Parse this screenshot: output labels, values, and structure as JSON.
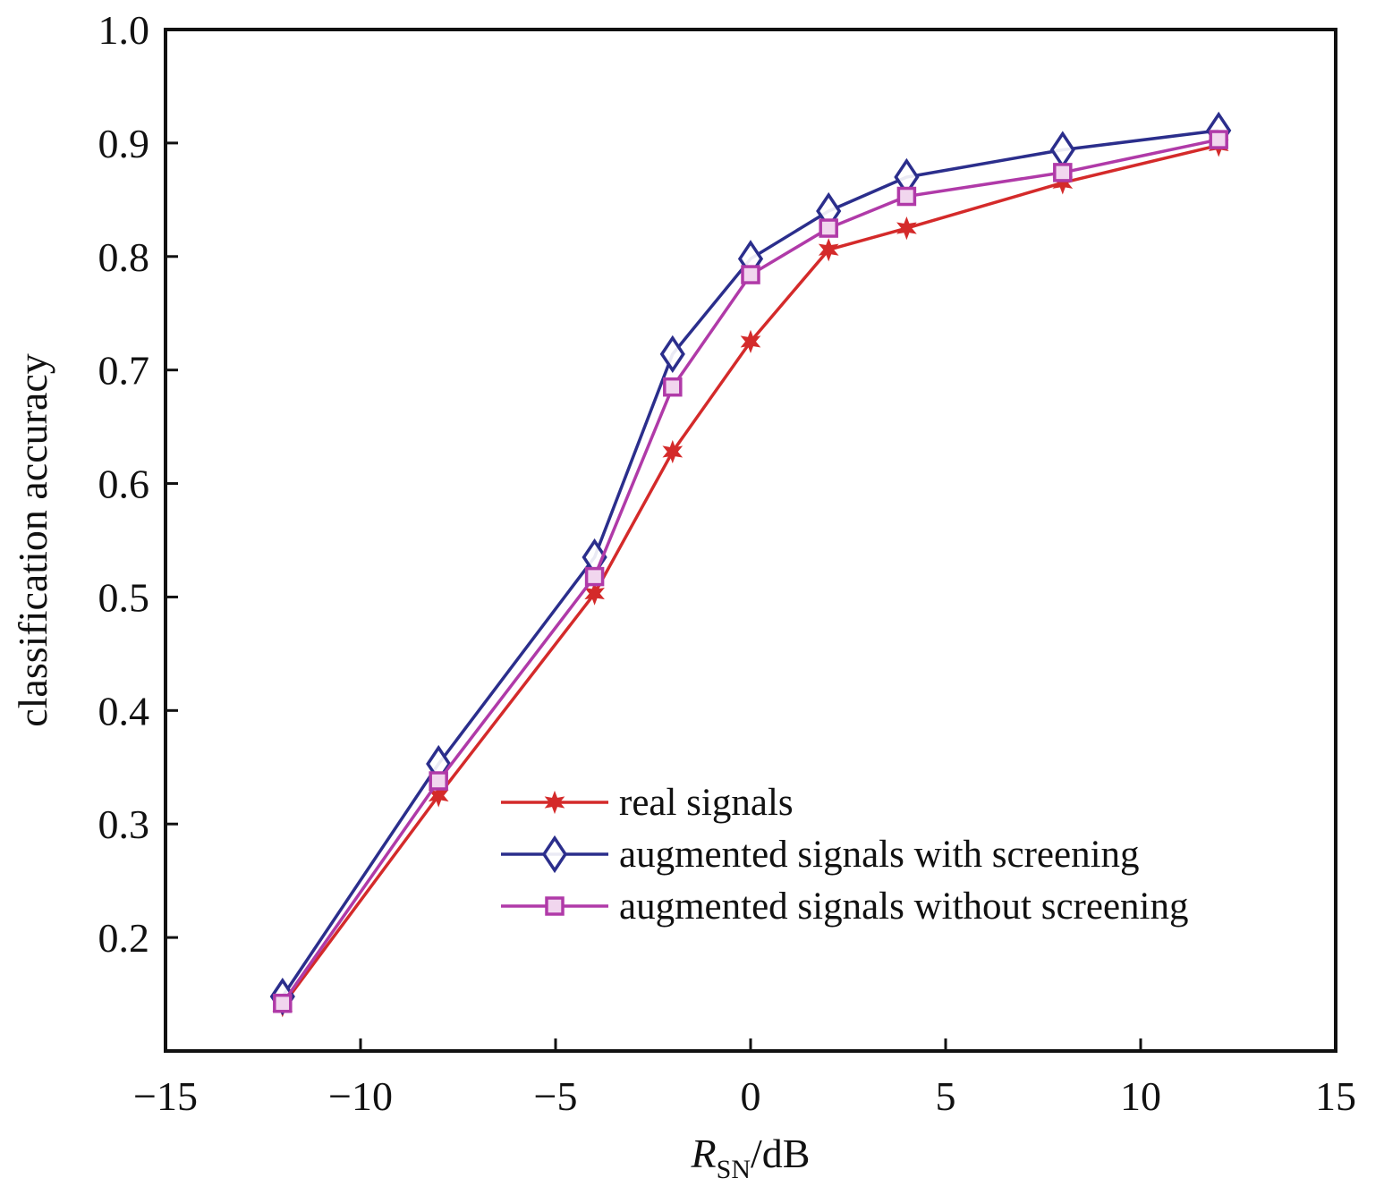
{
  "chart_data": {
    "type": "line",
    "title": "",
    "xlabel": {
      "main": "R",
      "sub": "SN",
      "suffix": "/dB"
    },
    "ylabel": "classification accuracy",
    "xlim": [
      -15,
      15
    ],
    "ylim": [
      0.1,
      1.0
    ],
    "xticks": [
      -15,
      -10,
      -5,
      0,
      5,
      10,
      15
    ],
    "xtick_labels": [
      "−15",
      "−10",
      "−5",
      "0",
      "5",
      "10",
      "15"
    ],
    "yticks": [
      0.2,
      0.3,
      0.4,
      0.5,
      0.6,
      0.7,
      0.8,
      0.9,
      1.0
    ],
    "ytick_labels": [
      "0.2",
      "0.3",
      "0.4",
      "0.5",
      "0.6",
      "0.7",
      "0.8",
      "0.9",
      "1.0"
    ],
    "grid": false,
    "legend_position": "lower-right",
    "x": [
      -12,
      -8,
      -4,
      -2,
      0,
      2,
      4,
      8,
      12
    ],
    "series": [
      {
        "name": "real signals",
        "marker": "star",
        "color": "#d42a2a",
        "values": [
          0.14,
          0.325,
          0.503,
          0.628,
          0.725,
          0.806,
          0.825,
          0.865,
          0.898
        ]
      },
      {
        "name": "augmented signals with screening",
        "marker": "diamond",
        "color": "#2b2e8c",
        "values": [
          0.148,
          0.353,
          0.535,
          0.714,
          0.798,
          0.84,
          0.87,
          0.894,
          0.911
        ]
      },
      {
        "name": "augmented signals without screening",
        "marker": "square",
        "color": "#b03aa8",
        "values": [
          0.142,
          0.338,
          0.518,
          0.685,
          0.784,
          0.825,
          0.853,
          0.874,
          0.903
        ]
      }
    ]
  }
}
